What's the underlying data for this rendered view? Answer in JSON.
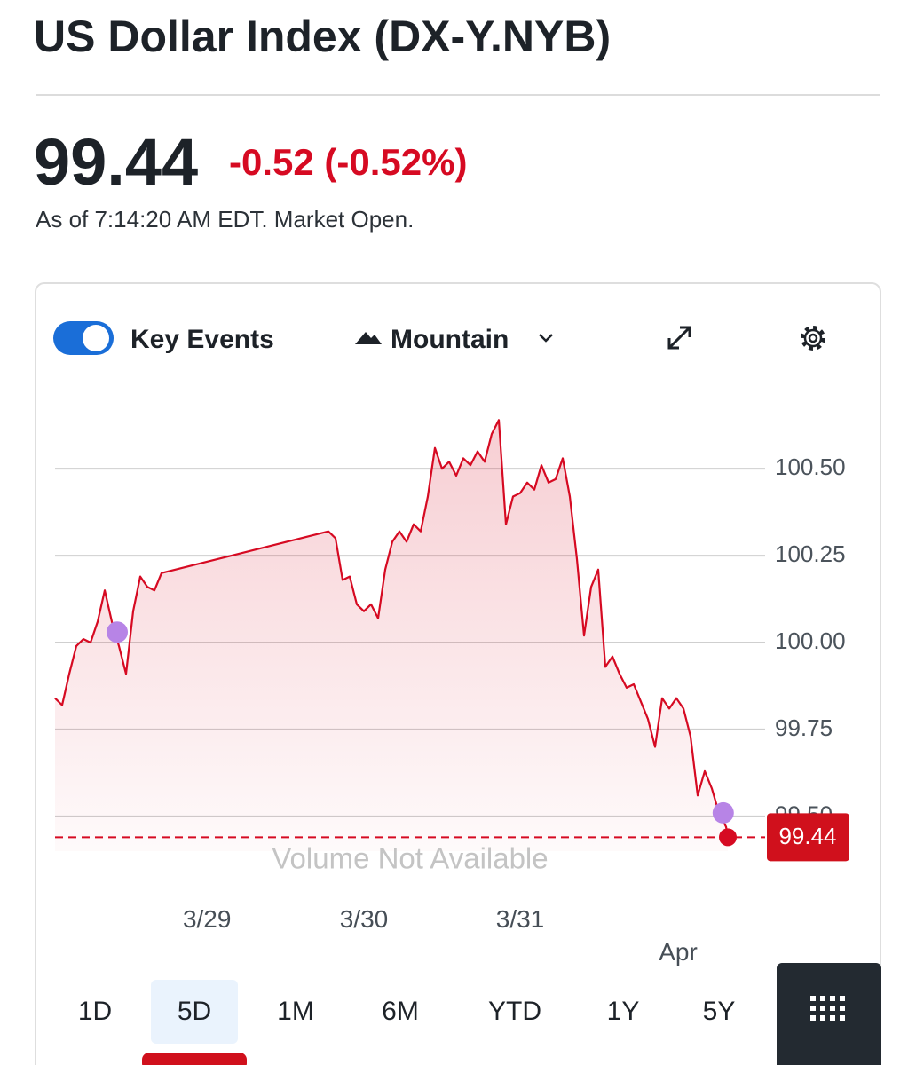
{
  "header": {
    "title": "US Dollar Index (DX-Y.NYB)"
  },
  "quote": {
    "price": "99.44",
    "change": "-0.52 (-0.52%)",
    "as_of": "As of 7:14:20 AM EDT. Market Open."
  },
  "toolbar": {
    "key_events": "Key Events",
    "chart_style": "Mountain"
  },
  "chart_data": {
    "type": "area",
    "x": [
      0,
      1,
      2,
      3,
      4,
      5,
      6,
      7,
      8,
      9,
      10,
      11,
      12,
      13,
      14,
      15,
      38.5,
      39.5,
      40.5,
      41.5,
      42.5,
      43.5,
      44.5,
      45.5,
      46.5,
      47.5,
      48.5,
      49.5,
      50.5,
      51.5,
      52.5,
      53.5,
      54.5,
      55.5,
      56.5,
      57.5,
      58.5,
      59.5,
      60.5,
      61.5,
      62.5,
      63.5,
      64.5,
      65.5,
      66.5,
      67.5,
      68.5,
      69.5,
      70.5,
      71.5,
      72.5,
      73.5,
      74.5,
      75.5,
      76.5,
      77.5,
      78.5,
      79.5,
      80.5,
      81.5,
      82.5,
      83.5,
      84.5,
      85.5,
      86.5,
      87.5,
      88.5,
      89.5,
      90.5,
      91.5,
      92.5,
      93.5,
      94.5,
      94.75
    ],
    "values": [
      99.84,
      99.82,
      99.91,
      99.99,
      100.01,
      100.0,
      100.06,
      100.15,
      100.06,
      99.99,
      99.91,
      100.09,
      100.19,
      100.16,
      100.15,
      100.2,
      100.32,
      100.3,
      100.18,
      100.19,
      100.11,
      100.09,
      100.11,
      100.07,
      100.21,
      100.29,
      100.32,
      100.29,
      100.34,
      100.32,
      100.42,
      100.56,
      100.5,
      100.52,
      100.48,
      100.53,
      100.51,
      100.55,
      100.52,
      100.6,
      100.64,
      100.34,
      100.42,
      100.43,
      100.46,
      100.44,
      100.51,
      100.46,
      100.47,
      100.53,
      100.42,
      100.24,
      100.02,
      100.16,
      100.21,
      99.93,
      99.96,
      99.91,
      99.87,
      99.88,
      99.83,
      99.78,
      99.7,
      99.84,
      99.81,
      99.84,
      99.81,
      99.73,
      99.56,
      99.63,
      99.58,
      99.51,
      99.47,
      99.44
    ],
    "color": "#d60a22",
    "events": {
      "x": [
        8.75,
        94.1
      ],
      "values": [
        100.03,
        99.51
      ],
      "color": "#b784e6"
    },
    "last_value": 99.44,
    "xlim": [
      0,
      100
    ],
    "ylim": [
      99.4,
      100.72
    ],
    "yticks": [
      {
        "value": 99.5,
        "label": "99.50"
      },
      99.75,
      {
        "value": 100,
        "label": "100.00"
      },
      100.25,
      {
        "value": 100.5,
        "label": "100.50"
      }
    ],
    "xticks": [
      {
        "value": 21.4,
        "label": "3/29"
      },
      {
        "value": 43.5,
        "label": "3/30"
      },
      {
        "value": 65.5,
        "label": "3/31"
      },
      {
        "value": 87.75,
        "label": "Apr"
      }
    ],
    "grid": true,
    "annotation": "Volume Not Available"
  },
  "ranges": {
    "items": [
      "1D",
      "5D",
      "1M",
      "6M",
      "YTD",
      "1Y",
      "5Y"
    ],
    "selected": 1
  }
}
